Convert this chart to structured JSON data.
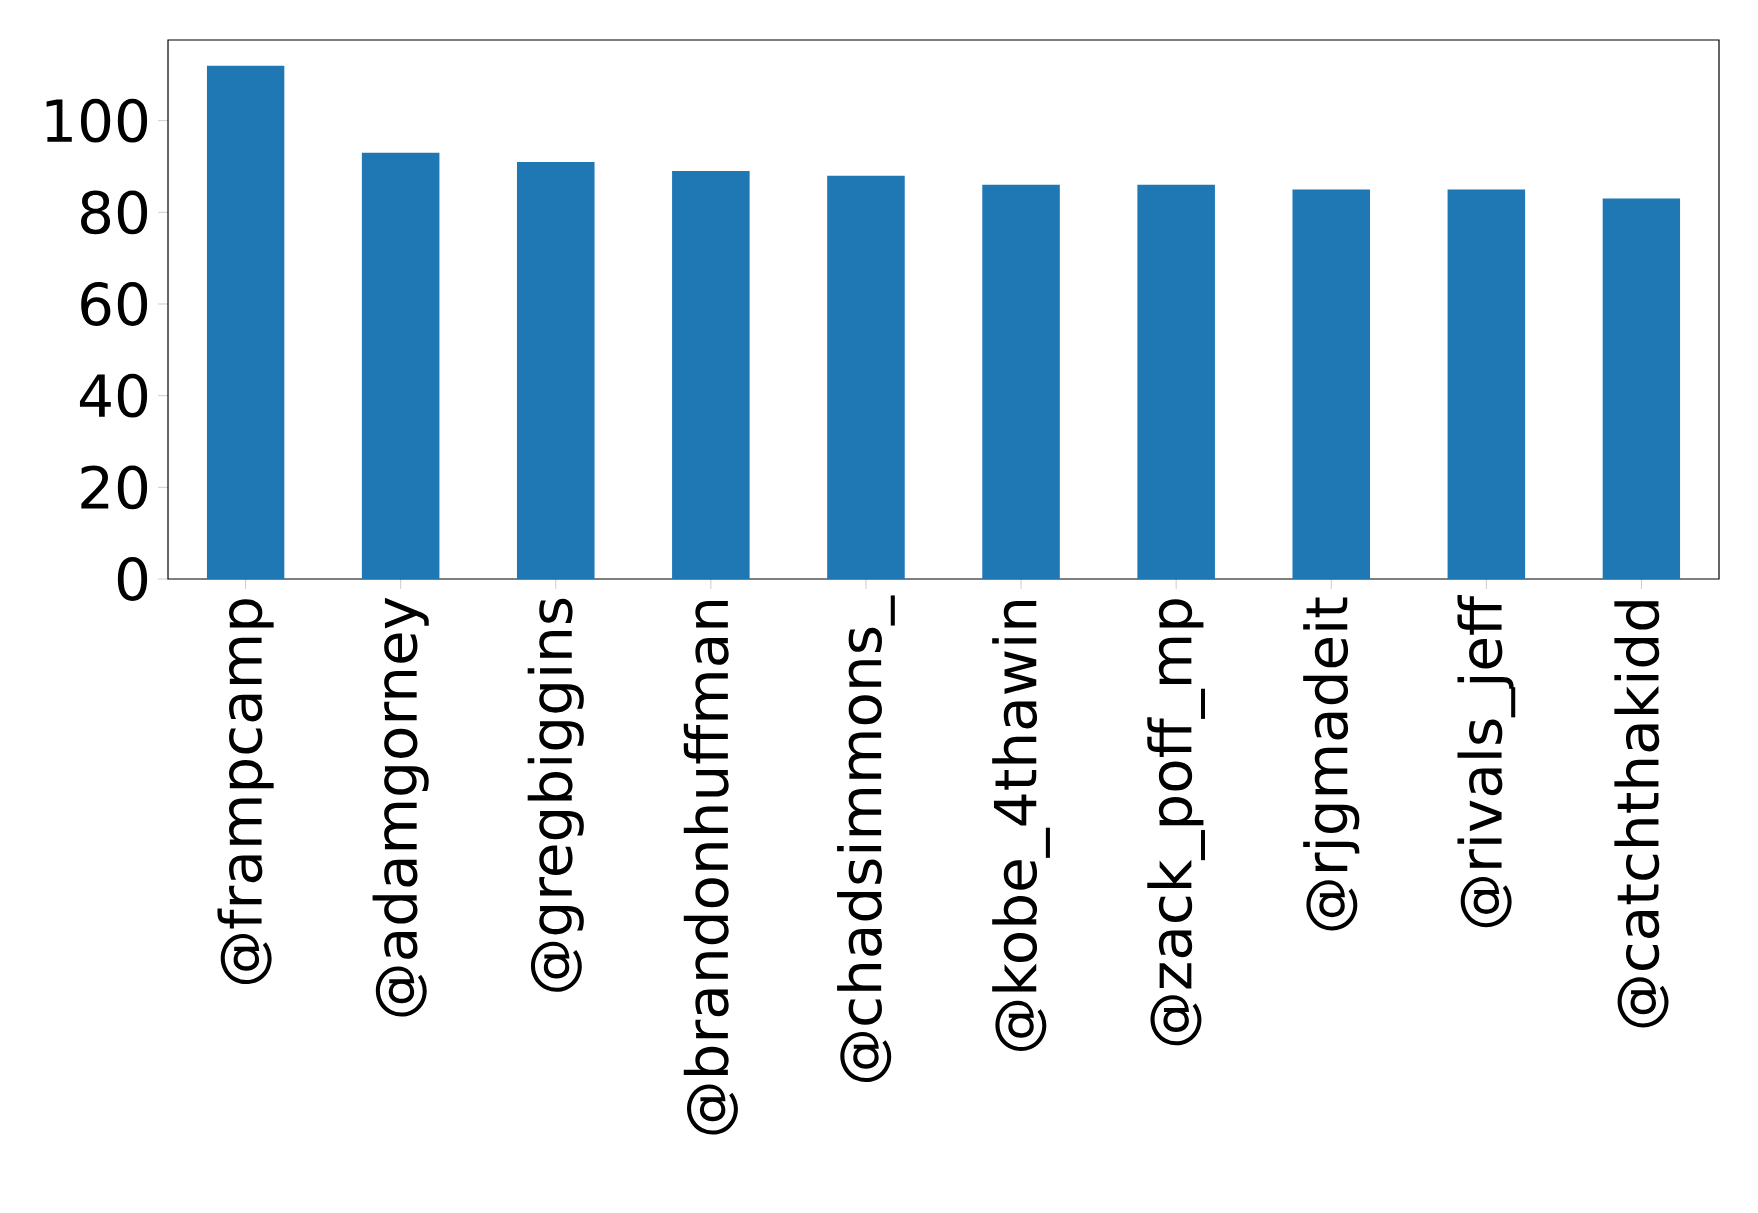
{
  "chart_data": {
    "type": "bar",
    "categories": [
      "@frampcamp",
      "@adamgorney",
      "@gregbiggins",
      "@brandonhuffman",
      "@chadsimmons_",
      "@kobe_4thawin",
      "@zack_poff_mp",
      "@rjgmadeit",
      "@rivals_jeff",
      "@catchthakidd"
    ],
    "values": [
      112,
      93,
      91,
      89,
      88,
      86,
      86,
      85,
      85,
      83
    ],
    "color": "#1f77b4",
    "ylim": [
      0,
      117.6
    ],
    "yticks": [
      0,
      20,
      40,
      60,
      80,
      100
    ]
  }
}
